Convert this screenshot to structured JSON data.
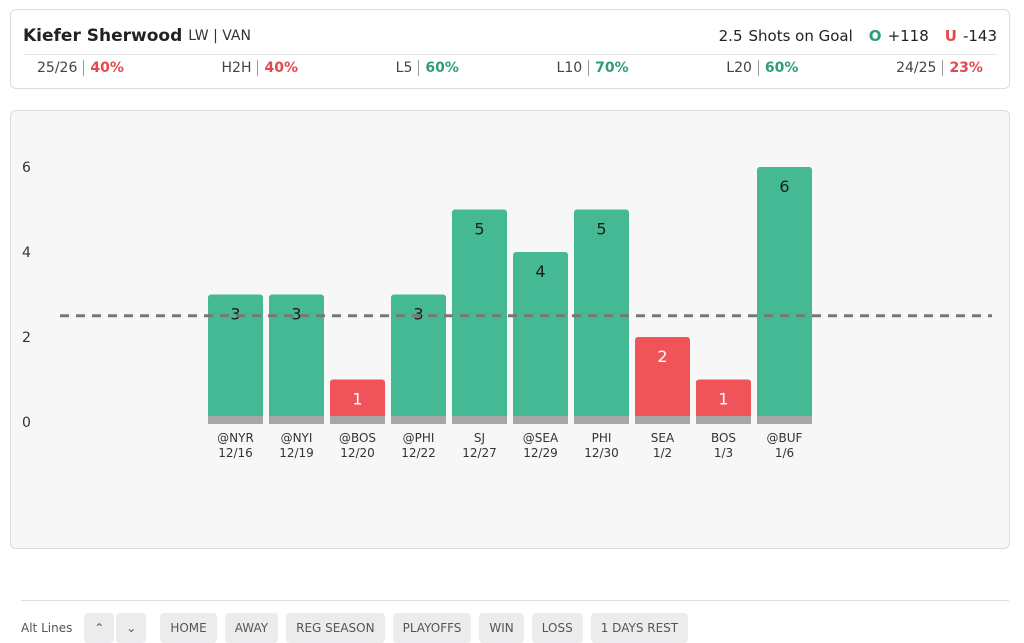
{
  "header": {
    "player": "Kiefer Sherwood",
    "position": "LW | VAN",
    "market": "Shots on Goal",
    "over_label": "O",
    "over_odds": "+118",
    "under_label": "U",
    "under_odds": "-143"
  },
  "stats": [
    {
      "label": "25/26",
      "value": "40%",
      "color": "#e5484d"
    },
    {
      "label": "H2H",
      "value": "40%",
      "color": "#e5484d"
    },
    {
      "label": "L5",
      "value": "60%",
      "color": "#2f9e74"
    },
    {
      "label": "L10",
      "value": "70%",
      "color": "#2f9e74"
    },
    {
      "label": "L20",
      "value": "60%",
      "color": "#2f9e74"
    },
    {
      "label": "24/25",
      "value": "23%",
      "color": "#e5484d"
    }
  ],
  "chart_data": {
    "type": "bar",
    "categories": [
      "@NYR",
      "@NYI",
      "@BOS",
      "@PHI",
      "SJ",
      "@SEA",
      "PHI",
      "SEA",
      "BOS",
      "@BUF"
    ],
    "dates": [
      "12/16",
      "12/19",
      "12/20",
      "12/22",
      "12/27",
      "12/29",
      "12/30",
      "1/2",
      "1/3",
      "1/6"
    ],
    "values": [
      3,
      3,
      1,
      3,
      5,
      4,
      5,
      2,
      1,
      6
    ],
    "line": 2.5,
    "over_color": "#45b994",
    "under_color": "#f05458",
    "ylim": [
      0,
      6
    ],
    "yticks": [
      0,
      2,
      4,
      6
    ]
  },
  "controls": {
    "alt_lines": "Alt Lines",
    "filters": [
      "HOME",
      "AWAY",
      "REG SEASON",
      "PLAYOFFS",
      "WIN",
      "LOSS",
      "1 DAYS REST"
    ]
  }
}
